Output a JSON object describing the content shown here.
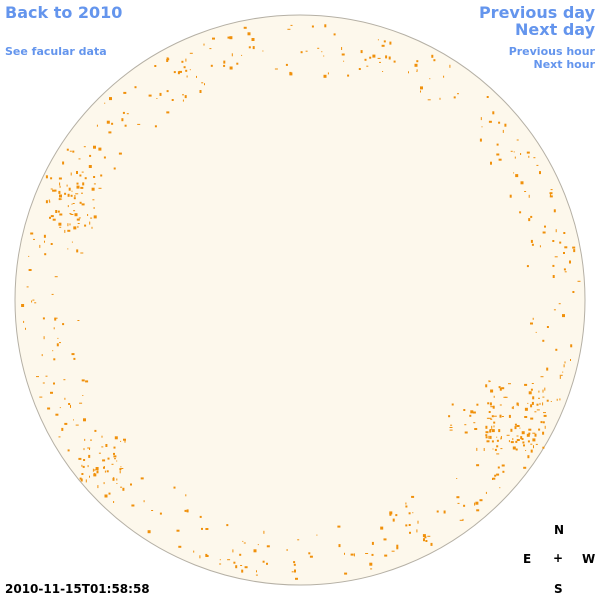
{
  "nav": {
    "back": "Back to 2010",
    "facular": "See facular data",
    "previous_day": "Previous day",
    "next_day": "Next day",
    "previous_hour": "Previous hour",
    "next_hour": "Next hour"
  },
  "compass": {
    "north": "N",
    "east": "E",
    "center": "+",
    "west": "W",
    "south": "S"
  },
  "timestamp": "2010-11-15T01:58:58"
}
